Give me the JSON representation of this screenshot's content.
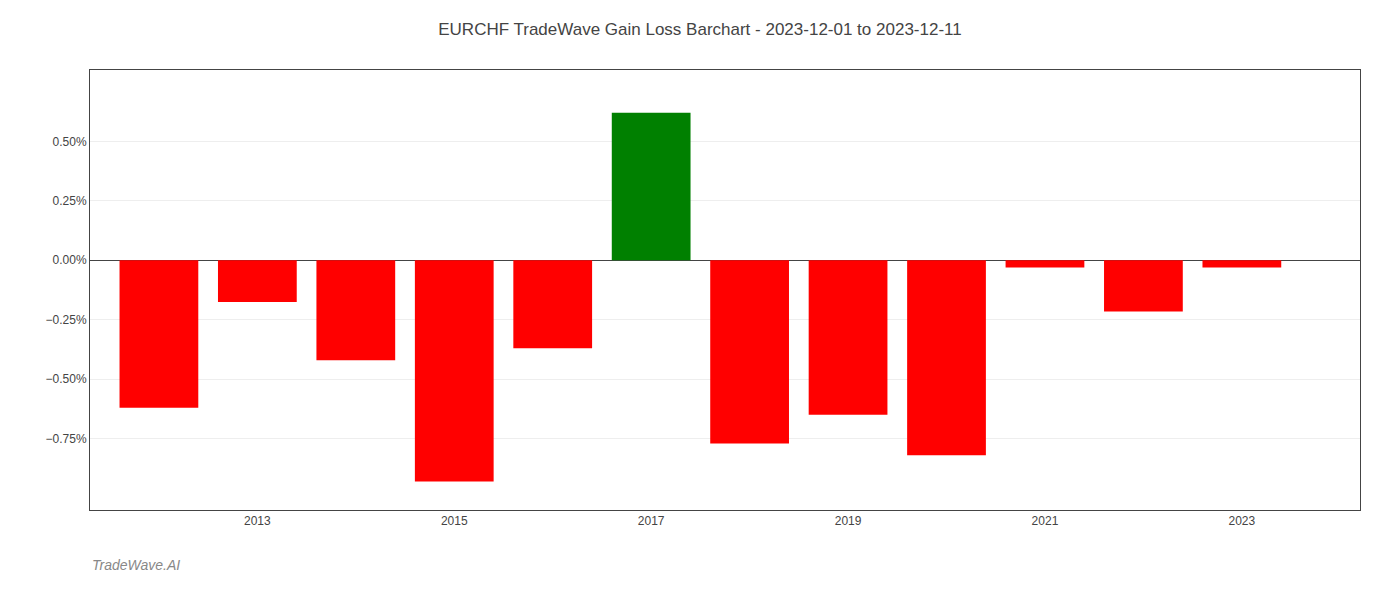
{
  "chart_data": {
    "type": "bar",
    "title": "EURCHF TradeWave Gain Loss Barchart - 2023-12-01 to 2023-12-11",
    "annotations": [
      "TradeWave.AI"
    ],
    "x": [
      2012,
      2013,
      2014,
      2015,
      2016,
      2017,
      2018,
      2019,
      2020,
      2021,
      2022,
      2023
    ],
    "values": [
      -0.62,
      -0.175,
      -0.42,
      -0.93,
      -0.37,
      0.62,
      -0.77,
      -0.65,
      -0.82,
      -0.03,
      -0.215,
      -0.03
    ],
    "colors": [
      "#ff0000",
      "#ff0000",
      "#ff0000",
      "#ff0000",
      "#ff0000",
      "#008000",
      "#ff0000",
      "#ff0000",
      "#ff0000",
      "#ff0000",
      "#ff0000",
      "#ff0000"
    ],
    "xlim": [
      2011.3,
      2024.2
    ],
    "xticks": [
      2013,
      2015,
      2017,
      2019,
      2021,
      2023
    ],
    "ylim": [
      -1.05,
      0.8
    ],
    "yticks": [
      {
        "value": -0.75,
        "label": "−0.75%"
      },
      {
        "value": -0.5,
        "label": "−0.50%"
      },
      {
        "value": -0.25,
        "label": "−0.25%"
      },
      {
        "value": 0.0,
        "label": "0.00%"
      },
      {
        "value": 0.25,
        "label": "0.25%"
      },
      {
        "value": 0.5,
        "label": "0.50%"
      }
    ],
    "grid": true
  }
}
